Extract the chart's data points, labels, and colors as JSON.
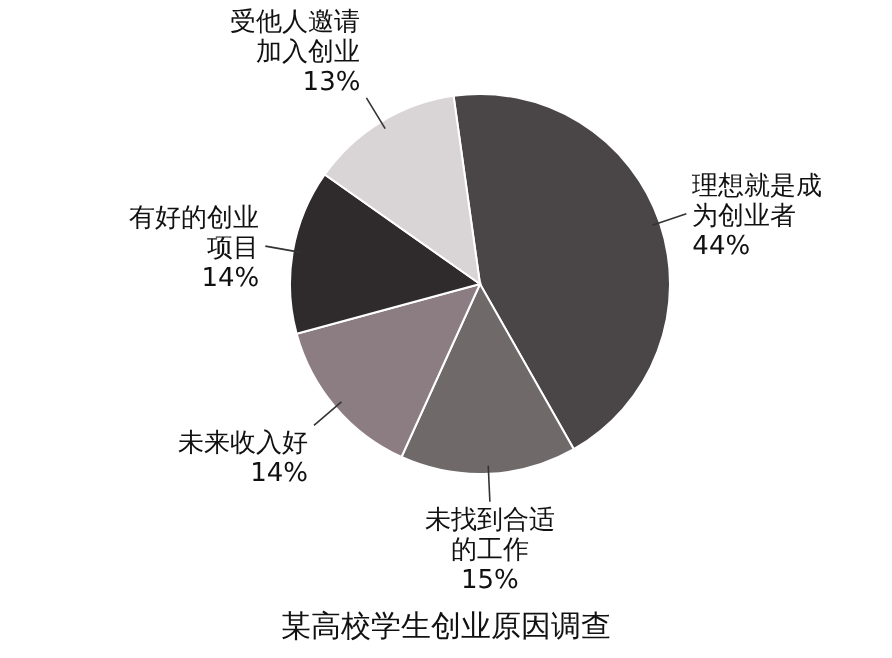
{
  "chart_data": {
    "type": "pie",
    "title": "某高校学生创业原因调查",
    "categories": [
      "理想就是成为创业者",
      "未找到合适的工作",
      "未来收入好",
      "有好的创业项目",
      "受他人邀请加入创业"
    ],
    "values": [
      44,
      15,
      14,
      14,
      13
    ],
    "colors": [
      "#4a4546",
      "#6f696a",
      "#8c7d83",
      "#2f2a2b",
      "#d9d4d5"
    ],
    "value_labels": [
      "44%",
      "15%",
      "14%",
      "14%",
      "13%"
    ]
  }
}
